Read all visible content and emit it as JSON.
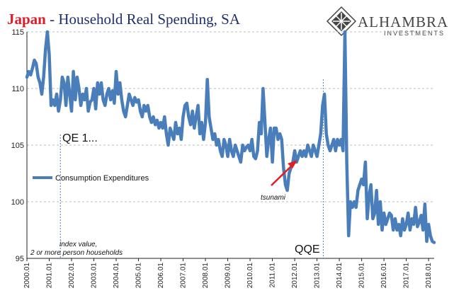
{
  "title": {
    "country": "Japan",
    "rest": " - Household Real Spending, SA",
    "country_color": "#d8202a",
    "rest_color": "#1f2f6e"
  },
  "logo": {
    "name": "ALHAMBRA",
    "sub": "INVESTMENTS"
  },
  "annotations": {
    "qe1": "QE 1...",
    "qqe": "QQE",
    "tsunami": "tsunami",
    "note_line1": "index value,",
    "note_line2": "2 or more person households"
  },
  "chart_data": {
    "type": "line",
    "title": "Japan - Household Real Spending, SA",
    "xlabel": "",
    "ylabel": "",
    "ylim": [
      95,
      115
    ],
    "yticks": [
      95,
      100,
      105,
      110,
      115
    ],
    "xticks": [
      "2000.01",
      "2001.01",
      "2002.01",
      "2003.01",
      "2004.01",
      "2005.01",
      "2006.01",
      "2007.01",
      "2008.01",
      "2009.01",
      "2010.01",
      "2011.01",
      "2012.01",
      "2013.01",
      "2014.01",
      "2015.01",
      "2016.01",
      "2017.01",
      "2018.01"
    ],
    "x_start": 2000.0,
    "x_step_months": 1,
    "legend": "left-middle",
    "grid": "horizontal-dashed",
    "series": [
      {
        "name": "Consumption Expenditures",
        "color": "#4a7ebb",
        "values": [
          111.0,
          111.5,
          111.2,
          111.8,
          112.5,
          112.2,
          111.0,
          110.5,
          109.5,
          111.0,
          113.5,
          115.5,
          113.0,
          108.5,
          109.0,
          108.5,
          109.5,
          108.0,
          109.0,
          111.0,
          110.5,
          108.5,
          111.0,
          109.5,
          108.0,
          111.5,
          109.0,
          111.0,
          110.0,
          108.5,
          109.5,
          109.0,
          110.0,
          108.0,
          108.8,
          109.0,
          110.0,
          108.2,
          110.5,
          109.5,
          110.5,
          109.0,
          108.5,
          109.5,
          110.0,
          109.0,
          109.8,
          108.7,
          111.5,
          109.5,
          110.5,
          109.0,
          108.0,
          107.5,
          108.5,
          109.5,
          109.0,
          108.5,
          109.2,
          108.8,
          109.0,
          108.0,
          107.5,
          108.5,
          108.0,
          108.5,
          107.5,
          107.0,
          107.5,
          106.8,
          107.2,
          106.5,
          107.0,
          106.5,
          107.5,
          106.0,
          105.0,
          106.5,
          106.0,
          105.5,
          107.0,
          106.0,
          106.5,
          105.5,
          107.5,
          108.5,
          108.7,
          107.5,
          106.8,
          108.0,
          106.5,
          107.5,
          108.5,
          106.0,
          107.0,
          105.5,
          107.0,
          110.8,
          107.5,
          106.5,
          105.5,
          106.0,
          105.0,
          105.5,
          104.5,
          104.0,
          105.5,
          105.0,
          104.0,
          105.5,
          104.5,
          104.0,
          105.0,
          104.5,
          104.0,
          103.5,
          105.0,
          104.5,
          104.8,
          105.0,
          104.5,
          105.5,
          104.0,
          103.8,
          104.5,
          107.0,
          106.0,
          110.0,
          107.0,
          104.0,
          105.5,
          106.5,
          103.5,
          106.5,
          106.5,
          105.5,
          106.0,
          105.5,
          103.0,
          101.5,
          101.0,
          102.5,
          103.0,
          103.5,
          104.5,
          103.5,
          104.0,
          104.5,
          104.0,
          104.5,
          104.0,
          105.0,
          104.5,
          104.0,
          105.0,
          104.5,
          104.0,
          105.0,
          106.0,
          108.5,
          109.5,
          106.0,
          105.0,
          104.5,
          105.0,
          105.5,
          104.5,
          105.5,
          105.0,
          105.5,
          104.5,
          115.0,
          103.5,
          97.0,
          100.0,
          99.5,
          100.0,
          99.5,
          101.0,
          101.5,
          102.0,
          101.5,
          103.5,
          98.5,
          100.5,
          101.5,
          98.5,
          99.0,
          101.0,
          98.0,
          100.0,
          97.5,
          99.0,
          98.0,
          98.5,
          99.0,
          98.8,
          97.5,
          98.5,
          97.5,
          98.0,
          97.0,
          98.5,
          97.5,
          98.0,
          99.0,
          97.5,
          98.5,
          98.0,
          99.5,
          97.8,
          98.2,
          98.8,
          97.5,
          99.8,
          96.5,
          98.0,
          97.0,
          96.5,
          96.4
        ]
      }
    ],
    "vlines": [
      {
        "x": 2001.5,
        "label": "QE 1..."
      },
      {
        "x": 2013.28,
        "label": "QQE"
      }
    ]
  }
}
